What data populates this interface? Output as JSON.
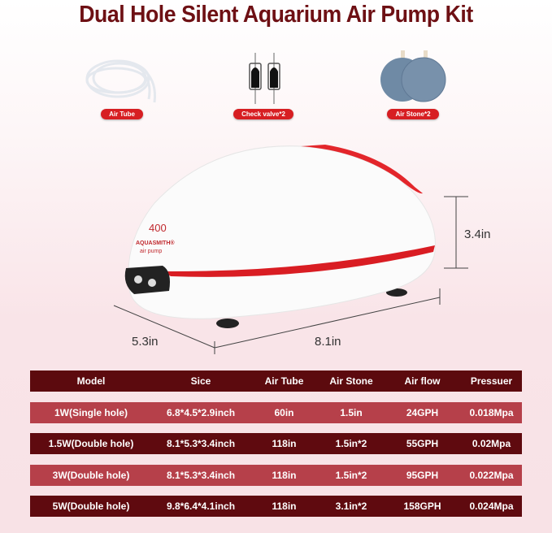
{
  "title": "Dual Hole Silent Aquarium Air Pump Kit",
  "accessories": [
    {
      "label": "Air Tube",
      "icon": "air-tube-icon"
    },
    {
      "label": "Check valve*2",
      "icon": "check-valve-icon"
    },
    {
      "label": "Air Stone*2",
      "icon": "air-stone-icon"
    }
  ],
  "product": {
    "model_number": "400",
    "brand": "AQUASMITH®",
    "subtitle": "air pump",
    "height": "3.4in",
    "width": "5.3in",
    "length": "8.1in"
  },
  "colors": {
    "title": "#6e1014",
    "header_row": "#5c0a0e",
    "light_row": "#b6404a",
    "dark_row": "#5f0a0f",
    "pill": "#d71e22"
  },
  "table": {
    "headers": [
      "Model",
      "Sice",
      "Air Tube",
      "Air Stone",
      "Air flow",
      "Pressuer"
    ],
    "rows": [
      [
        "1W(Single hole)",
        "6.8*4.5*2.9inch",
        "60in",
        "1.5in",
        "24GPH",
        "0.018Mpa"
      ],
      [
        "1.5W(Double hole)",
        "8.1*5.3*3.4inch",
        "118in",
        "1.5in*2",
        "55GPH",
        "0.02Mpa"
      ],
      [
        "3W(Double hole)",
        "8.1*5.3*3.4inch",
        "118in",
        "1.5in*2",
        "95GPH",
        "0.022Mpa"
      ],
      [
        "5W(Double hole)",
        "9.8*6.4*4.1inch",
        "118in",
        "3.1in*2",
        "158GPH",
        "0.024Mpa"
      ]
    ]
  }
}
